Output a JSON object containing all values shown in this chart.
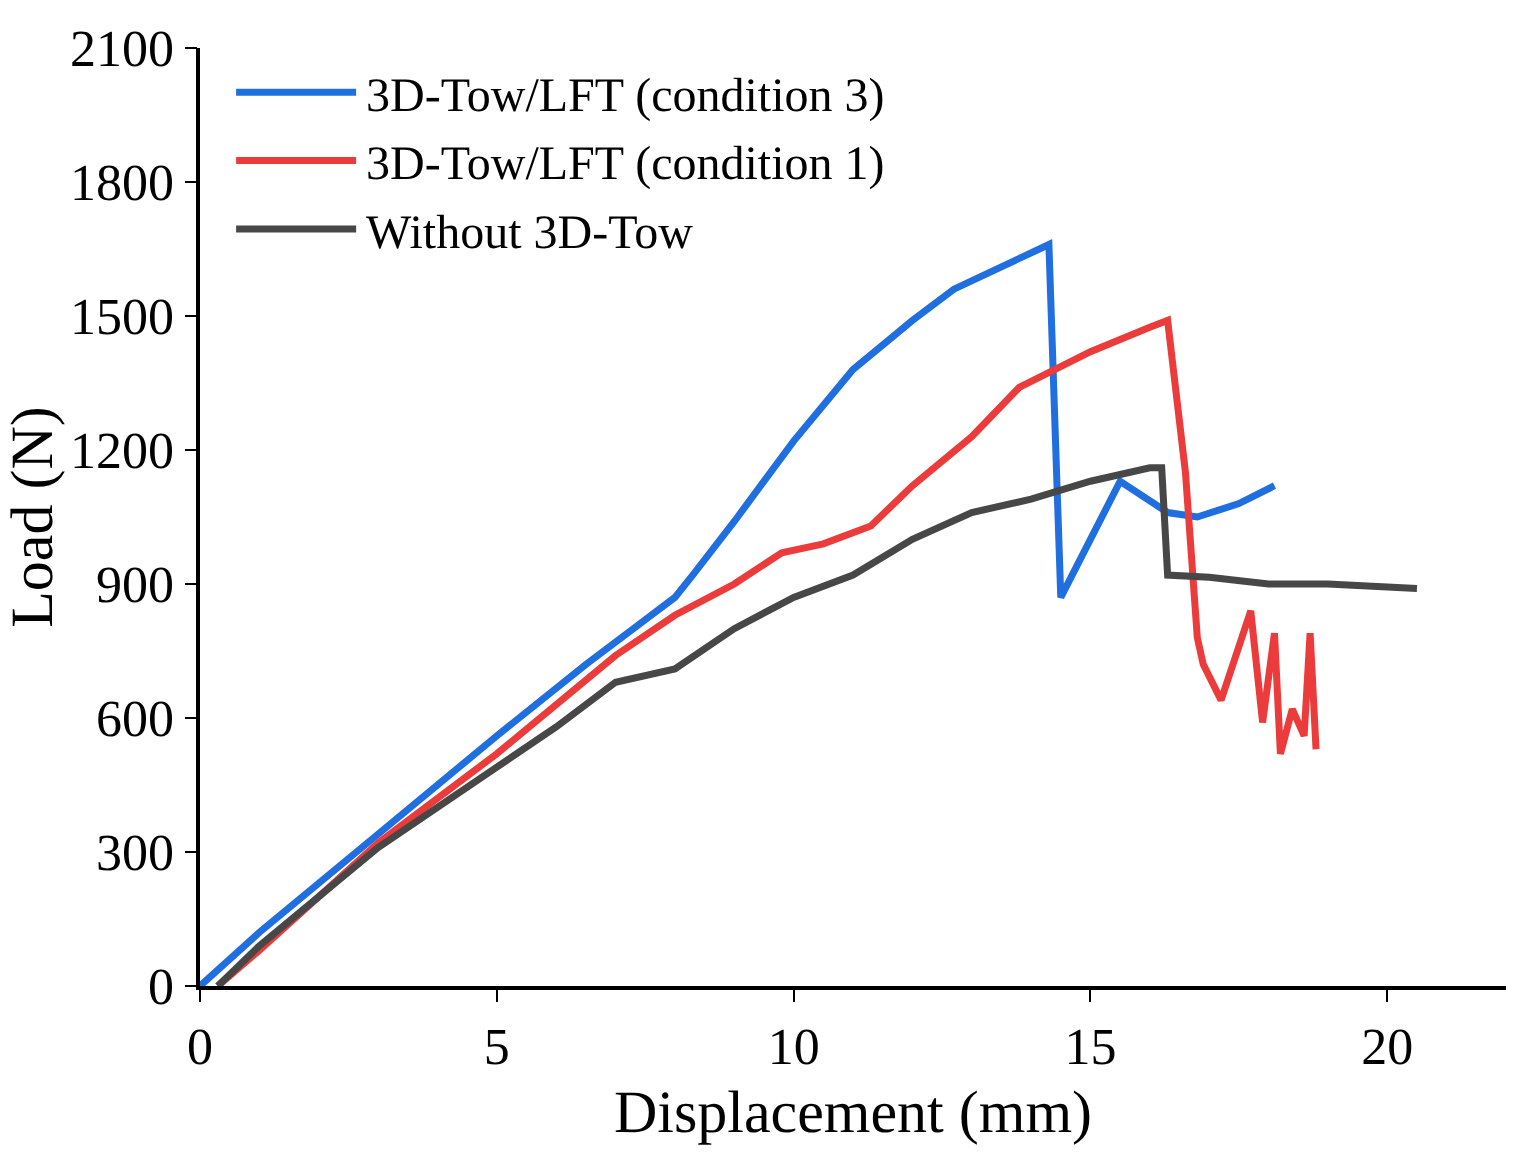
{
  "chart_data": {
    "type": "line",
    "xlabel": "Displacement (mm)",
    "ylabel": "Load (N)",
    "xlim": [
      0,
      22
    ],
    "xticks": [
      0,
      5,
      10,
      15,
      20
    ],
    "ylim": [
      0,
      2100
    ],
    "yticks": [
      0,
      300,
      600,
      900,
      1200,
      1500,
      1800,
      2100
    ],
    "legend": "top left",
    "marker": "none",
    "line_style": "solid",
    "series": [
      {
        "name": "3D-Tow/LFT (condition 3)",
        "color": "#1f6fe0",
        "x": [
          0,
          1,
          3,
          5,
          6.5,
          7.5,
          8,
          8.3,
          9,
          10,
          11,
          12,
          12.7,
          13.5,
          14.3,
          14.5,
          15.5,
          16.3,
          16.8,
          17.5,
          18.1
        ],
        "values": [
          0,
          120,
          340,
          560,
          720,
          820,
          870,
          920,
          1040,
          1220,
          1380,
          1490,
          1560,
          1610,
          1660,
          870,
          1130,
          1060,
          1050,
          1080,
          1120
        ]
      },
      {
        "name": "3D-Tow/LFT (condition 1)",
        "color": "#eb3b3b",
        "x": [
          0.3,
          1,
          3,
          5,
          7,
          8,
          9,
          9.8,
          10.5,
          11.3,
          12,
          13,
          13.8,
          15,
          16,
          16.3,
          16.6,
          16.8,
          16.9,
          17.2,
          17.7,
          17.9,
          18.1,
          18.2,
          18.4,
          18.6,
          18.7,
          18.8
        ],
        "values": [
          0,
          80,
          320,
          520,
          740,
          830,
          900,
          970,
          990,
          1030,
          1120,
          1230,
          1340,
          1420,
          1475,
          1490,
          1150,
          780,
          720,
          640,
          840,
          590,
          790,
          520,
          620,
          560,
          790,
          530
        ]
      },
      {
        "name": "Without 3D-Tow",
        "color": "#474747",
        "x": [
          0.3,
          1,
          3,
          5,
          6,
          7,
          8,
          9,
          10,
          11,
          12,
          13,
          14,
          15,
          16,
          16.2,
          16.3,
          17,
          18,
          19,
          20.5
        ],
        "values": [
          0,
          90,
          310,
          490,
          580,
          680,
          710,
          800,
          870,
          920,
          1000,
          1060,
          1090,
          1130,
          1160,
          1160,
          920,
          915,
          900,
          900,
          890
        ]
      }
    ]
  }
}
